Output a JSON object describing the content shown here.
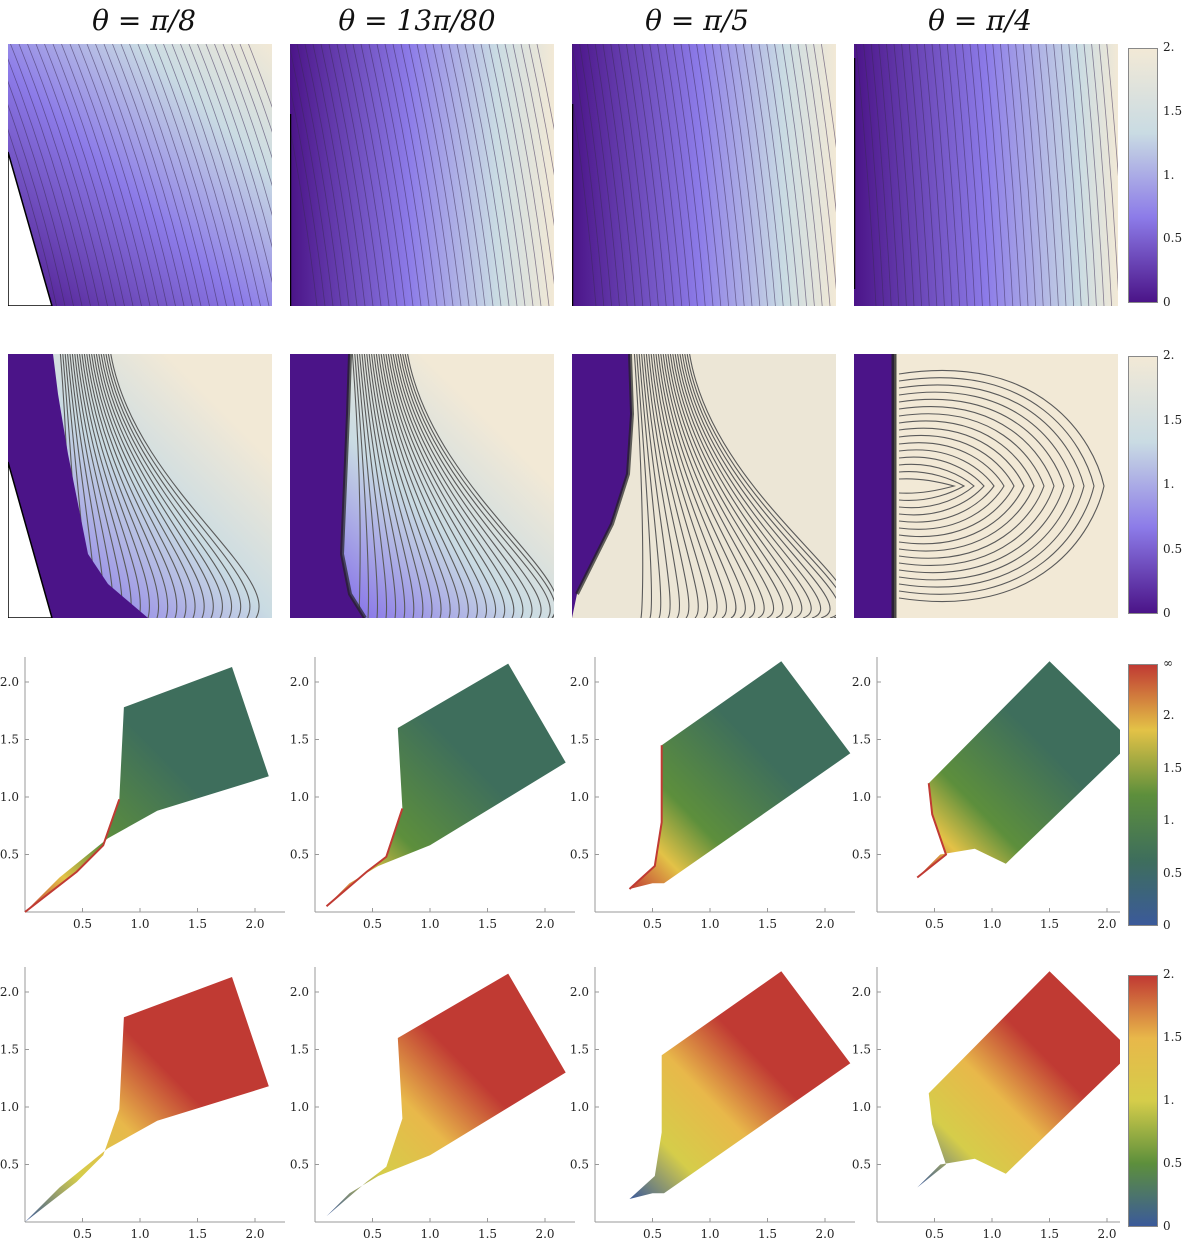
{
  "columns": [
    {
      "title": "θ = π/8"
    },
    {
      "title": "θ = 13π/80"
    },
    {
      "title": "θ = π/5"
    },
    {
      "title": "θ = π/4"
    }
  ],
  "colorbars": [
    {
      "labels": [
        "2.",
        "1.5",
        "1.",
        "0.5",
        "0"
      ],
      "colors": [
        "#f2e9d6",
        "#c9dbe3",
        "#8c7be8",
        "#4b1488"
      ]
    },
    {
      "labels": [
        "2.",
        "1.5",
        "1.",
        "0.5",
        "0"
      ],
      "colors": [
        "#f2e9d6",
        "#c9dbe3",
        "#8c7be8",
        "#4b1488"
      ]
    },
    {
      "labels": [
        "∞",
        "2.",
        "1.5",
        "1.",
        "0.5",
        "0"
      ],
      "colors": [
        "#c03a33",
        "#e3c247",
        "#5d8f3c",
        "#3e6e5c",
        "#3b5a9a"
      ]
    },
    {
      "labels": [
        "2.",
        "1.5",
        "1.",
        "0.5",
        "0"
      ],
      "colors": [
        "#c03a33",
        "#e8b84a",
        "#d5cd4a",
        "#5d8f3c",
        "#3b5a9a"
      ]
    }
  ],
  "axes": {
    "x_ticks": [
      "0.5",
      "1.0",
      "1.5",
      "2.0"
    ],
    "y_ticks": [
      "0.5",
      "1.0",
      "1.5",
      "2.0"
    ]
  }
}
